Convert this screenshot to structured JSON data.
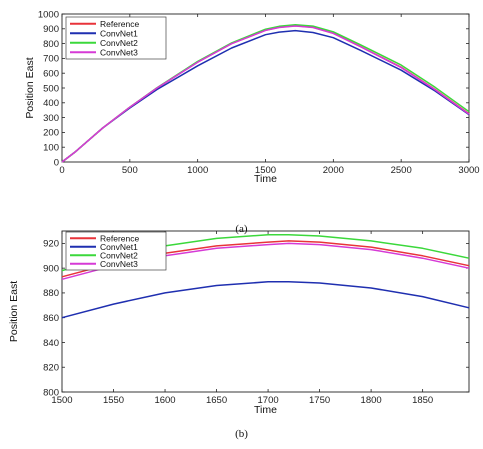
{
  "chart_data": [
    {
      "type": "line",
      "caption": "(a)",
      "xlabel": "Time",
      "ylabel": "Position East",
      "xlim": [
        0,
        3000
      ],
      "ylim": [
        0,
        1000
      ],
      "xticks": [
        0,
        500,
        1000,
        1500,
        2000,
        2500,
        3000
      ],
      "yticks": [
        0,
        100,
        200,
        300,
        400,
        500,
        600,
        700,
        800,
        900,
        1000
      ],
      "grid": false,
      "legend_position": "top-left",
      "series": [
        {
          "name": "Reference",
          "color": "#e8333a",
          "x": [
            0,
            100,
            200,
            300,
            500,
            700,
            1000,
            1250,
            1500,
            1600,
            1720,
            1850,
            2000,
            2200,
            2500,
            2750,
            3000
          ],
          "y": [
            0,
            70,
            150,
            230,
            370,
            500,
            675,
            800,
            890,
            910,
            920,
            910,
            870,
            780,
            640,
            490,
            325
          ]
        },
        {
          "name": "ConvNet1",
          "color": "#1f2fb0",
          "x": [
            0,
            100,
            200,
            300,
            500,
            700,
            1000,
            1250,
            1500,
            1600,
            1720,
            1850,
            2000,
            2200,
            2500,
            2750,
            3000
          ],
          "y": [
            0,
            70,
            150,
            230,
            365,
            490,
            650,
            770,
            860,
            878,
            888,
            875,
            840,
            755,
            620,
            480,
            320
          ]
        },
        {
          "name": "ConvNet2",
          "color": "#3bd83b",
          "x": [
            0,
            100,
            200,
            300,
            500,
            700,
            1000,
            1250,
            1500,
            1600,
            1720,
            1850,
            2000,
            2200,
            2500,
            2750,
            3000
          ],
          "y": [
            0,
            70,
            150,
            230,
            370,
            502,
            680,
            805,
            897,
            917,
            927,
            918,
            880,
            792,
            655,
            505,
            340
          ]
        },
        {
          "name": "ConvNet3",
          "color": "#d63ad6",
          "x": [
            0,
            100,
            200,
            300,
            500,
            700,
            1000,
            1250,
            1500,
            1600,
            1720,
            1850,
            2000,
            2200,
            2500,
            2750,
            3000
          ],
          "y": [
            0,
            70,
            150,
            230,
            370,
            500,
            674,
            799,
            889,
            909,
            919,
            909,
            869,
            779,
            638,
            488,
            323
          ]
        }
      ]
    },
    {
      "type": "line",
      "caption": "(b)",
      "xlabel": "Time",
      "ylabel": "Position East",
      "xlim": [
        1500,
        1895
      ],
      "ylim": [
        800,
        930
      ],
      "xticks": [
        1500,
        1550,
        1600,
        1650,
        1700,
        1750,
        1800,
        1850
      ],
      "yticks": [
        800,
        820,
        840,
        860,
        880,
        900,
        920
      ],
      "grid": false,
      "legend_position": "top-left",
      "series": [
        {
          "name": "Reference",
          "color": "#e8333a",
          "x": [
            1500,
            1550,
            1600,
            1650,
            1700,
            1720,
            1750,
            1800,
            1850,
            1895
          ],
          "y": [
            893,
            904,
            912,
            918,
            921,
            922,
            921,
            917,
            910,
            902
          ]
        },
        {
          "name": "ConvNet1",
          "color": "#1f2fb0",
          "x": [
            1500,
            1550,
            1600,
            1650,
            1700,
            1720,
            1750,
            1800,
            1850,
            1895
          ],
          "y": [
            860,
            871,
            880,
            886,
            889,
            889,
            888,
            884,
            877,
            868
          ]
        },
        {
          "name": "ConvNet2",
          "color": "#3bd83b",
          "x": [
            1500,
            1550,
            1600,
            1650,
            1700,
            1720,
            1750,
            1800,
            1850,
            1895
          ],
          "y": [
            898,
            910,
            918,
            924,
            927,
            927,
            926,
            922,
            916,
            908
          ]
        },
        {
          "name": "ConvNet3",
          "color": "#d63ad6",
          "x": [
            1500,
            1550,
            1600,
            1650,
            1700,
            1720,
            1750,
            1800,
            1850,
            1895
          ],
          "y": [
            891,
            902,
            910,
            916,
            919,
            920,
            919,
            915,
            908,
            900
          ]
        }
      ]
    }
  ]
}
